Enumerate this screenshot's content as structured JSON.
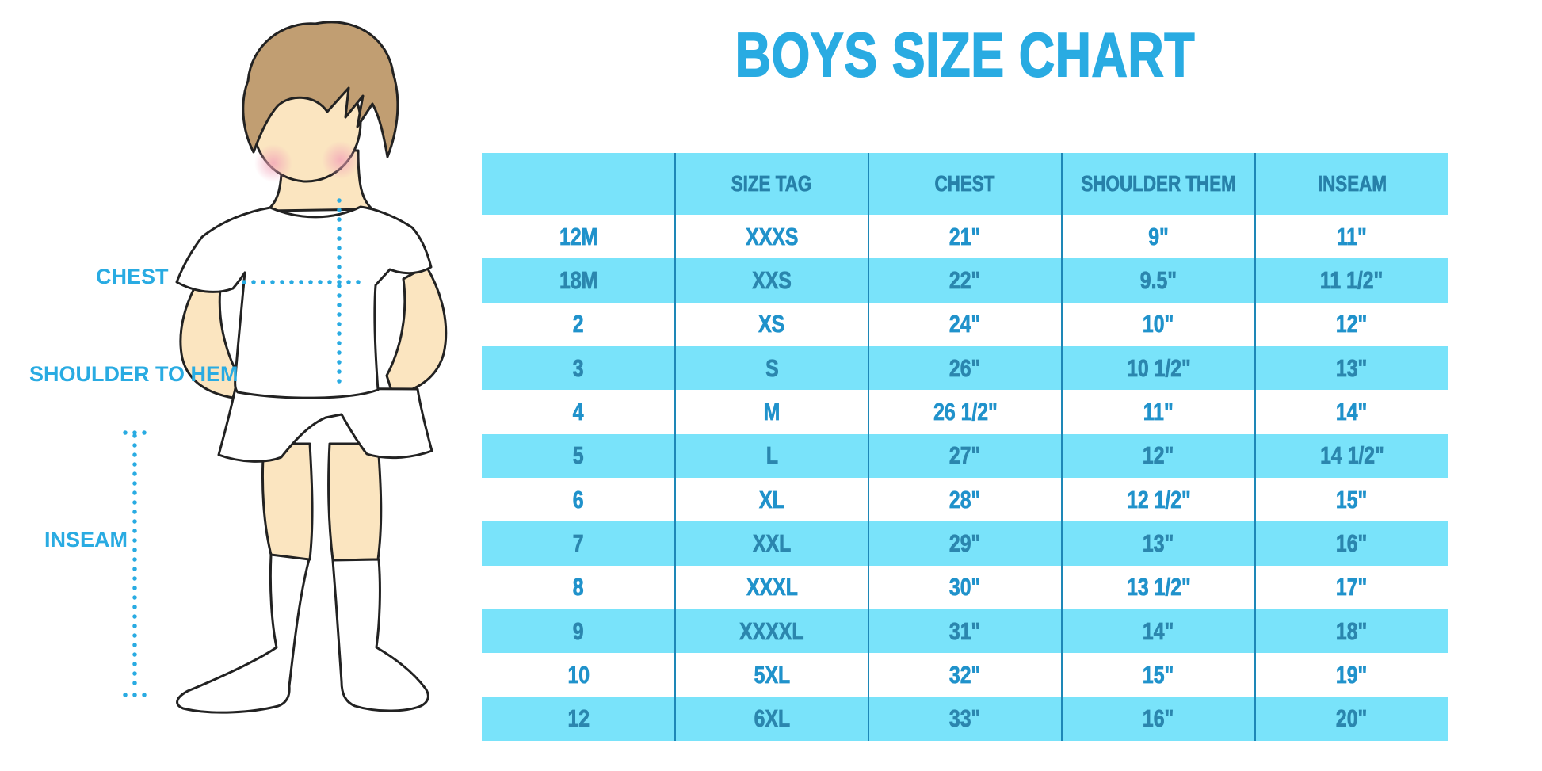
{
  "title": "BOYS SIZE CHART",
  "diagram": {
    "figure": "faceless cartoon boy in white tee, white shorts and knee socks with dotted measurement guides",
    "labels": {
      "chest": "CHEST",
      "shoulder_to_hem": "SHOULDER TO HEM",
      "inseam": "INSEAM"
    }
  },
  "chart_data": {
    "type": "table",
    "title": "BOYS SIZE CHART",
    "columns": [
      "",
      "SIZE TAG",
      "CHEST",
      "SHOULDER THEM",
      "INSEAM"
    ],
    "rows": [
      [
        "12M",
        "XXXS",
        "21\"",
        "9\"",
        "11\""
      ],
      [
        "18M",
        "XXS",
        "22\"",
        "9.5\"",
        "11 1/2\""
      ],
      [
        "2",
        "XS",
        "24\"",
        "10\"",
        "12\""
      ],
      [
        "3",
        "S",
        "26\"",
        "10 1/2\"",
        "13\""
      ],
      [
        "4",
        "M",
        "26 1/2\"",
        "11\"",
        "14\""
      ],
      [
        "5",
        "L",
        "27\"",
        "12\"",
        "14 1/2\""
      ],
      [
        "6",
        "XL",
        "28\"",
        "12 1/2\"",
        "15\""
      ],
      [
        "7",
        "XXL",
        "29\"",
        "13\"",
        "16\""
      ],
      [
        "8",
        "XXXL",
        "30\"",
        "13 1/2\"",
        "17\""
      ],
      [
        "9",
        "XXXXL",
        "31\"",
        "14\"",
        "18\""
      ],
      [
        "10",
        "5XL",
        "32\"",
        "15\"",
        "19\""
      ],
      [
        "12",
        "6XL",
        "33\"",
        "16\"",
        "20\""
      ]
    ],
    "units": "inches",
    "layout_hints": "header row and even data rows light blue, odd data rows white, no horizontal gridlines, dark blue vertical column dividers, 5 equal columns"
  },
  "colors": {
    "title_text": "#29ABE2",
    "stripe_row_bg": "#79E3FA",
    "header_text": "#2781A9",
    "white_row_text": "#2092CB",
    "blue_row_text": "#2B86AE",
    "column_divider": "#1E87B7",
    "measure_dotted_line": "#29ABE2",
    "skin": "#FBE5C0",
    "hair": "#C19E72",
    "cheek": "#F2A3B8",
    "outline": "#222222"
  }
}
